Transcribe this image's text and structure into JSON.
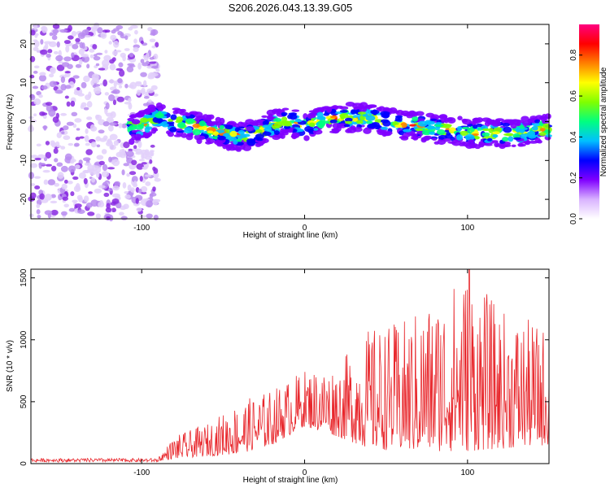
{
  "chart_data": [
    {
      "type": "heatmap",
      "title": "S206.2026.043.13.39.G05",
      "xlabel": "Height of straight line (km)",
      "ylabel": "Frequency (Hz)",
      "xlim": [
        -168,
        150
      ],
      "ylim": [
        -25,
        25
      ],
      "xticks": [
        -100,
        0,
        100
      ],
      "yticks": [
        -20,
        -10,
        0,
        10,
        20
      ],
      "colorbar": {
        "label": "Normalized spectral amplitude",
        "range": [
          0.0,
          0.95
        ],
        "ticks": [
          0.0,
          0.2,
          0.4,
          0.6,
          0.8
        ],
        "colors": [
          "#ffffff",
          "#d9b3ff",
          "#8000ff",
          "#0000ff",
          "#00c0ff",
          "#00ff80",
          "#80ff00",
          "#ffff00",
          "#ff8000",
          "#ff0000",
          "#ff0080"
        ]
      },
      "noise_region_x": [
        -168,
        -90
      ],
      "ridge": {
        "x": [
          -108,
          -100,
          -90,
          -80,
          -70,
          -60,
          -50,
          -40,
          -30,
          -20,
          -10,
          0,
          10,
          20,
          30,
          40,
          50,
          60,
          70,
          80,
          90,
          100,
          110,
          120,
          130,
          140,
          150
        ],
        "y": [
          -2,
          -1,
          1,
          0,
          -1,
          -2,
          -3,
          -4,
          -3,
          -1,
          0,
          -1,
          0,
          1,
          1,
          1,
          0,
          -1,
          -1,
          -2,
          -2,
          -3,
          -3,
          -3,
          -3,
          -2,
          -2
        ]
      }
    },
    {
      "type": "line",
      "xlabel": "Height of straight line (km)",
      "ylabel": "SNR (10 * v/v)",
      "xlim": [
        -168,
        150
      ],
      "ylim": [
        0,
        1570
      ],
      "xticks": [
        -100,
        0,
        100
      ],
      "yticks": [
        0,
        500,
        1000,
        1500
      ],
      "color": "#e8262b",
      "envelope": {
        "x": [
          -168,
          -90,
          -80,
          -60,
          -40,
          -20,
          0,
          20,
          40,
          60,
          80,
          100,
          120,
          150
        ],
        "base": [
          20,
          20,
          40,
          60,
          80,
          150,
          300,
          220,
          120,
          100,
          100,
          100,
          120,
          150
        ],
        "peak": [
          40,
          50,
          220,
          320,
          500,
          600,
          760,
          800,
          1100,
          1150,
          1350,
          1570,
          1250,
          1100
        ]
      }
    }
  ]
}
